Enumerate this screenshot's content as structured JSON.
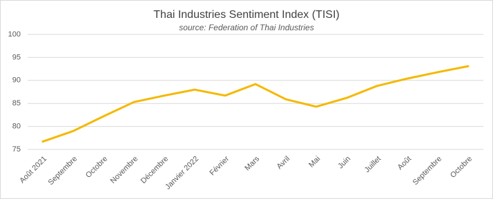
{
  "chart_data": {
    "type": "line",
    "title": "Thai Industries Sentiment Index (TISI)",
    "subtitle": "source: Federation of Thai Industries",
    "categories": [
      "Août 2021",
      "Septembre",
      "Octobre",
      "Novembre",
      "Décembre",
      "Janvier 2022",
      "Février",
      "Mars",
      "Avril",
      "Mai",
      "Juin",
      "Juillet",
      "Août",
      "Septembre",
      "Octobre"
    ],
    "values": [
      76.7,
      79.0,
      82.2,
      85.3,
      86.7,
      88.0,
      86.7,
      89.2,
      85.9,
      84.3,
      86.2,
      88.8,
      90.4,
      91.8,
      93.1
    ],
    "color": "#f5b800",
    "ylim": [
      75,
      100
    ],
    "yticks": [
      75,
      80,
      85,
      90,
      95,
      100
    ],
    "grid": true
  }
}
